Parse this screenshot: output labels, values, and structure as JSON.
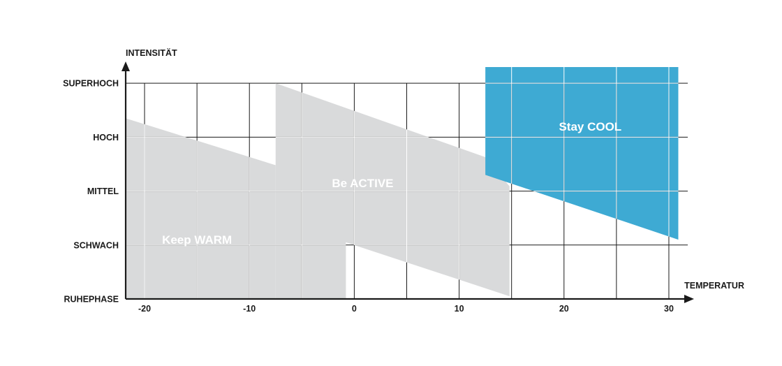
{
  "chart_data": {
    "type": "area",
    "xlabel": "TEMPERATUR",
    "ylabel": "INTENSITÄT",
    "x_ticks": [
      -20,
      -10,
      0,
      10,
      20,
      30
    ],
    "y_ticks": [
      "RUHEPHASE",
      "SCHWACH",
      "MITTEL",
      "HOCH",
      "SUPERHOCH"
    ],
    "xlim": [
      -21.8,
      31.8
    ],
    "ylim": [
      0,
      4.3
    ],
    "grid": true,
    "colors": {
      "warm_active": "#d9dadb",
      "cool": "#3eaad3",
      "axis": "#1a1a1a"
    },
    "zones": [
      {
        "name": "Keep WARM",
        "label_pos": [
          -15,
          1.1
        ],
        "color": "#d9dadb",
        "polygon": [
          [
            -21.8,
            3.35
          ],
          [
            -7.5,
            2.48
          ],
          [
            -7.5,
            0
          ],
          [
            -21.8,
            0
          ]
        ]
      },
      {
        "name": "Be ACTIVE",
        "label_pos": [
          0.8,
          2.15
        ],
        "color": "#d9dadb",
        "polygon": [
          [
            -7.5,
            4
          ],
          [
            12.5,
            2.63
          ],
          [
            14.8,
            0
          ],
          [
            -0.8,
            0
          ],
          [
            -0.8,
            1.05
          ],
          [
            14.8,
            0
          ],
          [
            14.8,
            2.09
          ],
          [
            -7.5,
            4
          ]
        ]
      },
      {
        "name": "Stay COOL",
        "label_pos": [
          22.5,
          3.2
        ],
        "color": "#3eaad3",
        "polygon": [
          [
            12.5,
            4.3
          ],
          [
            30.9,
            4.3
          ],
          [
            30.9,
            1.1
          ],
          [
            12.5,
            2.3
          ]
        ]
      }
    ]
  }
}
